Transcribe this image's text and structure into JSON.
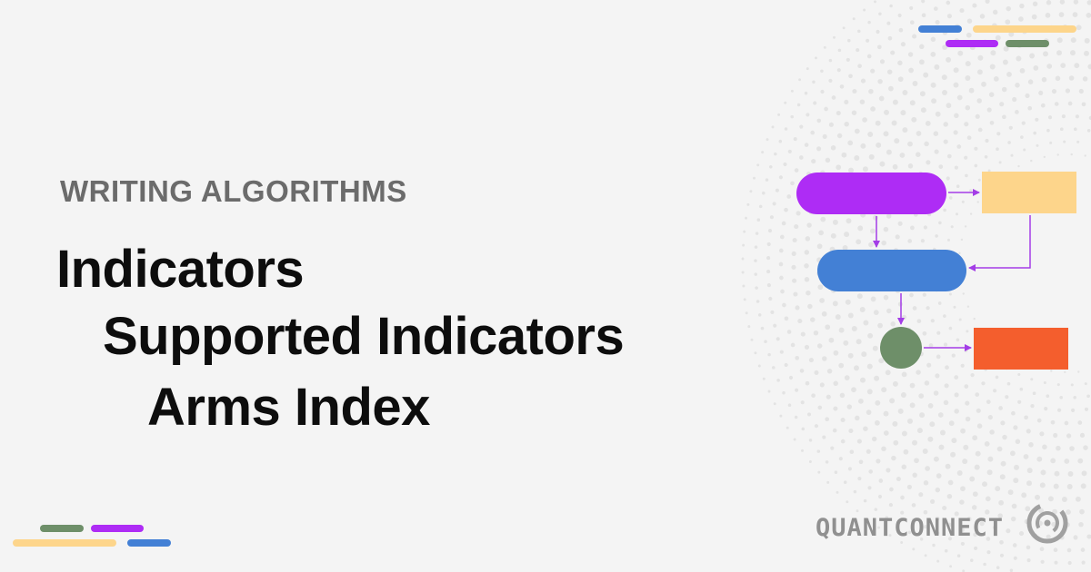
{
  "header": {
    "eyebrow": "WRITING ALGORITHMS"
  },
  "breadcrumb": {
    "level1": "Indicators",
    "level2": "Supported Indicators",
    "level3": "Arms Index"
  },
  "brand": {
    "name": "QUANTCONNECT",
    "logo_icon": "quantconnect-logo-icon"
  },
  "colors": {
    "purple": "#ae2cf5",
    "yellow": "#fdd58b",
    "blue": "#4380d5",
    "green": "#6e8f69",
    "orange": "#f45e2d",
    "arrow": "#a33de6",
    "text_dark": "#0d0d0d",
    "text_gray": "#6b6b6b"
  }
}
